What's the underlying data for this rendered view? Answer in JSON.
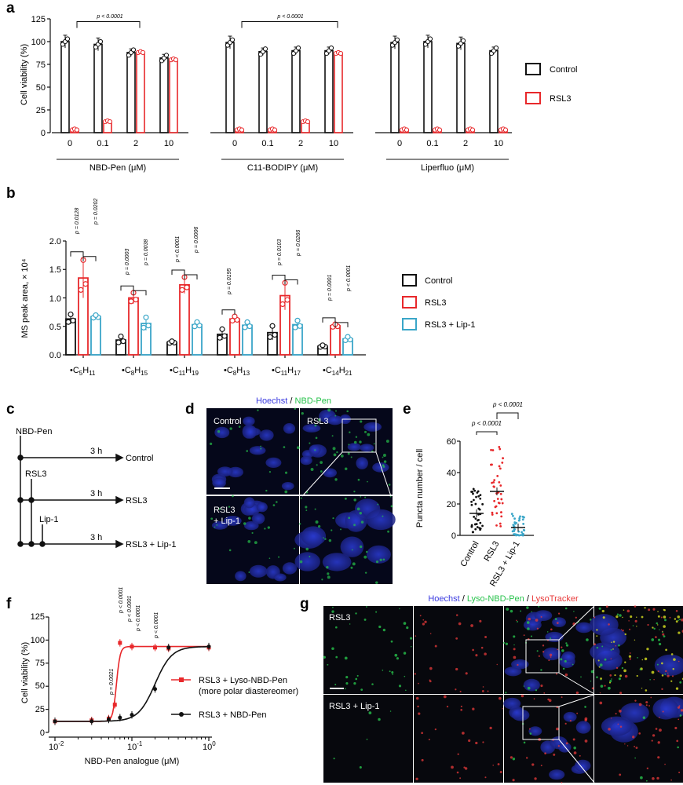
{
  "panels": {
    "a": "a",
    "b": "b",
    "c": "c",
    "d": "d",
    "e": "e",
    "f": "f",
    "g": "g"
  },
  "colors": {
    "control": "#111111",
    "rsl3": "#e8282b",
    "lip1": "#3aa6c8",
    "hoechst": "#3a3ae0",
    "green": "#27c24b",
    "red": "#e83a3a",
    "points_f_red": "#e8282b",
    "points_f_black": "#111111"
  },
  "pa": {
    "ylabel": "Cell viability (%)",
    "yticks": [
      "0",
      "25",
      "50",
      "75",
      "100",
      "125"
    ],
    "legend": [
      "Control",
      "RSL3"
    ],
    "pvals": [
      "p < 0.0001",
      "p < 0.0001"
    ],
    "groups": [
      "NBD-Pen (μM)",
      "C11-BODIPY (μM)",
      "Liperfluo (μM)"
    ]
  },
  "pb": {
    "ylabel": "MS peak area, × 10⁴",
    "yticks": [
      "0.0",
      "0.5",
      "1.0",
      "1.5",
      "2.0"
    ],
    "legend": [
      "Control",
      "RSL3",
      "RSL3 + Lip-1"
    ],
    "cats_main": [
      "•C",
      "•C",
      "•C",
      "•C",
      "•C",
      "•C"
    ],
    "cats_sub1": [
      "5",
      "8",
      "11",
      "8",
      "11",
      "14"
    ],
    "cats_H": [
      "H",
      "H",
      "H",
      "H",
      "H",
      "H"
    ],
    "cats_sub2": [
      "11",
      "15",
      "19",
      "13",
      "17",
      "21"
    ],
    "pvals": [
      "p = 0.0128",
      "p = 0.0202",
      "p = 0.0003",
      "p = 0.0038",
      "p < 0.0001",
      "p = 0.0006",
      "p = 0.0195",
      "p = 0.0103",
      "p = 0.0266",
      "p = 0.0001",
      "p < 0.0001"
    ]
  },
  "pc": {
    "labels": [
      "NBD-Pen",
      "RSL3",
      "Lip-1"
    ],
    "times": [
      "3 h",
      "3 h",
      "3 h"
    ],
    "ends": [
      "Control",
      "RSL3",
      "RSL3 + Lip-1"
    ]
  },
  "pd": {
    "title_blue": "Hoechst",
    "title_sep": " / ",
    "title_green": "NBD-Pen",
    "labels": [
      "Control",
      "RSL3",
      "RSL3",
      "+ Lip-1"
    ]
  },
  "pe": {
    "ylabel": "Puncta number / cell",
    "yticks": [
      "0",
      "20",
      "40",
      "60"
    ],
    "cats": [
      "Control",
      "RSL3",
      "RSL3 + Lip-1"
    ],
    "pvals": [
      "p < 0.0001",
      "p < 0.0001"
    ]
  },
  "pf": {
    "ylabel": "Cell viability (%)",
    "xlabel": "NBD-Pen analogue (μM)",
    "yticks": [
      "0",
      "25",
      "50",
      "75",
      "100",
      "125"
    ],
    "xticks_base": [
      "10",
      "10",
      "10"
    ],
    "xticks_exp": [
      "-2",
      "-1",
      "0"
    ],
    "legend": [
      "RSL3 + Lyso-NBD-Pen",
      "(more polar diastereomer)",
      "RSL3 + NBD-Pen"
    ],
    "pvals": [
      "p < 0.0001",
      "p < 0.0001",
      "p < 0.0001",
      "p < 0.0001",
      "p = 0.0021"
    ]
  },
  "pg": {
    "title_blue": "Hoechst",
    "title_sep1": " / ",
    "title_green": "Lyso-NBD-Pen",
    "title_sep2": " / ",
    "title_red": "LysoTracker",
    "labels": [
      "RSL3",
      "RSL3 + Lip-1"
    ]
  },
  "chart_data": [
    {
      "panel": "a",
      "type": "bar",
      "ylabel": "Cell viability (%)",
      "ylim": [
        0,
        125
      ],
      "groups": [
        "NBD-Pen (μM)",
        "C11-BODIPY (μM)",
        "Liperfluo (μM)"
      ],
      "categories": [
        "0",
        "0.1",
        "2",
        "10"
      ],
      "series": [
        {
          "name": "Control",
          "values": [
            [
              100,
              97,
              88,
              82
            ],
            [
              99,
              89,
              90,
              90
            ],
            [
              99,
              100,
              98,
              90
            ]
          ]
        },
        {
          "name": "RSL3",
          "values": [
            [
              3,
              12,
              88,
              80
            ],
            [
              3,
              3,
              12,
              87
            ],
            [
              3,
              3,
              3,
              3
            ]
          ]
        }
      ]
    },
    {
      "panel": "b",
      "type": "bar",
      "ylabel": "MS peak area, × 10⁴",
      "ylim": [
        0,
        2.0
      ],
      "categories": [
        "•C5H11",
        "•C8H15",
        "•C11H19",
        "•C8H13",
        "•C11H17",
        "•C14H21"
      ],
      "series": [
        {
          "name": "Control",
          "values": [
            0.63,
            0.26,
            0.22,
            0.36,
            0.39,
            0.15
          ]
        },
        {
          "name": "RSL3",
          "values": [
            1.35,
            1.0,
            1.23,
            0.63,
            1.04,
            0.51
          ]
        },
        {
          "name": "RSL3 + Lip-1",
          "values": [
            0.67,
            0.55,
            0.53,
            0.52,
            0.53,
            0.28
          ]
        }
      ]
    },
    {
      "panel": "e",
      "type": "scatter",
      "ylabel": "Puncta number / cell",
      "ylim": [
        0,
        60
      ],
      "categories": [
        "Control",
        "RSL3",
        "RSL3 + Lip-1"
      ],
      "means": [
        14,
        28,
        5
      ]
    },
    {
      "panel": "f",
      "type": "line",
      "xlabel": "NBD-Pen analogue (μM)",
      "ylabel": "Cell viability (%)",
      "xscale": "log",
      "xlim": [
        0.01,
        1
      ],
      "ylim": [
        0,
        125
      ],
      "series": [
        {
          "name": "RSL3 + Lyso-NBD-Pen (more polar diastereomer)",
          "x": [
            0.01,
            0.03,
            0.05,
            0.06,
            0.07,
            0.1,
            0.2,
            0.3,
            1
          ],
          "y": [
            12,
            13,
            15,
            30,
            97,
            93,
            92,
            91,
            92
          ]
        },
        {
          "name": "RSL3 + NBD-Pen",
          "x": [
            0.01,
            0.03,
            0.05,
            0.07,
            0.1,
            0.2,
            0.3,
            1
          ],
          "y": [
            12,
            12,
            14,
            16,
            19,
            47,
            92,
            93
          ]
        }
      ]
    }
  ]
}
